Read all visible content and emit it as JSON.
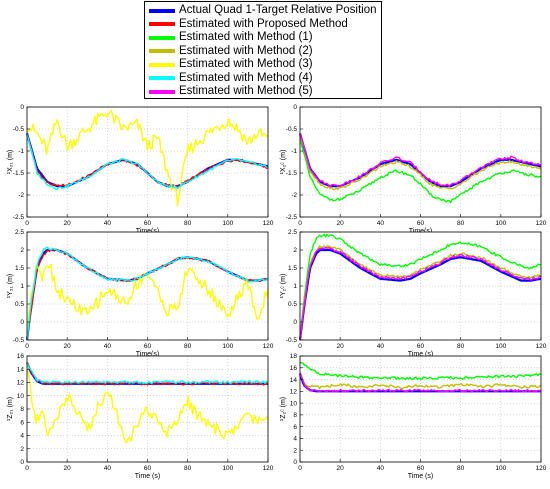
{
  "legend": [
    {
      "label": "Actual Quad 1-Target Relative Position",
      "color": "#0000ff"
    },
    {
      "label": "Estimated with Proposed Method",
      "color": "#ff0000"
    },
    {
      "label": "Estimated with Method (1)",
      "color": "#00ff00"
    },
    {
      "label": "Estimated with Method (2)",
      "color": "#bfbf00"
    },
    {
      "label": "Estimated with Method (3)",
      "color": "#ffff00"
    },
    {
      "label": "Estimated with Method (4)",
      "color": "#00ffff"
    },
    {
      "label": "Estimated with Method (5)",
      "color": "#ff00ff"
    }
  ],
  "chart_data": [
    {
      "type": "line",
      "panel": "top-left",
      "ylabel": "¹X₂₁ (m)",
      "xlabel": "Time(s)",
      "xlim": [
        0,
        120
      ],
      "ylim": [
        -2.5,
        0
      ],
      "xticks": [
        0,
        20,
        40,
        60,
        80,
        100,
        120
      ],
      "yticks": [
        -2.5,
        -2,
        -1.5,
        -1,
        -0.5,
        0
      ],
      "grid": true,
      "x": [
        0,
        5,
        10,
        15,
        20,
        30,
        40,
        48,
        55,
        60,
        65,
        70,
        75,
        80,
        90,
        100,
        105,
        110,
        115,
        120
      ],
      "series": [
        {
          "name": "Actual Quad 1-Target Relative Position",
          "color": "#0000ff",
          "values": [
            -0.6,
            -1.4,
            -1.7,
            -1.8,
            -1.8,
            -1.6,
            -1.3,
            -1.2,
            -1.3,
            -1.5,
            -1.7,
            -1.8,
            -1.8,
            -1.7,
            -1.4,
            -1.2,
            -1.2,
            -1.25,
            -1.3,
            -1.35
          ]
        },
        {
          "name": "Estimated with Proposed Method",
          "color": "#ff0000",
          "values": [
            -0.6,
            -1.45,
            -1.72,
            -1.8,
            -1.78,
            -1.58,
            -1.3,
            -1.2,
            -1.32,
            -1.5,
            -1.7,
            -1.78,
            -1.8,
            -1.68,
            -1.42,
            -1.22,
            -1.2,
            -1.25,
            -1.3,
            -1.38
          ]
        },
        {
          "name": "Estimated with Method (3)",
          "color": "#ffff00",
          "values": [
            -0.4,
            -0.6,
            -1.0,
            -0.3,
            -0.9,
            -0.5,
            -0.1,
            -0.5,
            -0.4,
            -0.9,
            -0.7,
            -1.5,
            -2.1,
            -1.0,
            -0.6,
            -0.3,
            -0.5,
            -0.8,
            -0.6,
            -0.7
          ]
        },
        {
          "name": "Estimated with Method (4)",
          "color": "#00ffff",
          "values": [
            -0.6,
            -1.5,
            -1.75,
            -1.85,
            -1.8,
            -1.6,
            -1.3,
            -1.2,
            -1.3,
            -1.5,
            -1.7,
            -1.8,
            -1.82,
            -1.7,
            -1.45,
            -1.22,
            -1.2,
            -1.26,
            -1.3,
            -1.37
          ]
        }
      ]
    },
    {
      "type": "line",
      "panel": "top-right",
      "ylabel": "¹X₂ᶜ (m)",
      "xlabel": "Time(s)",
      "xlim": [
        0,
        120
      ],
      "ylim": [
        -2.5,
        0
      ],
      "xticks": [
        0,
        20,
        40,
        60,
        80,
        100,
        120
      ],
      "yticks": [
        -2.5,
        -2,
        -1.5,
        -1,
        -0.5,
        0
      ],
      "grid": true,
      "x": [
        0,
        5,
        10,
        15,
        20,
        30,
        40,
        48,
        55,
        60,
        65,
        70,
        75,
        80,
        90,
        100,
        105,
        110,
        115,
        120
      ],
      "series": [
        {
          "name": "Actual Quad 1-Target Relative Position",
          "color": "#0000ff",
          "values": [
            -0.6,
            -1.4,
            -1.7,
            -1.8,
            -1.8,
            -1.6,
            -1.3,
            -1.2,
            -1.3,
            -1.5,
            -1.7,
            -1.8,
            -1.8,
            -1.7,
            -1.4,
            -1.2,
            -1.2,
            -1.25,
            -1.3,
            -1.35
          ]
        },
        {
          "name": "Estimated with Method (1)",
          "color": "#00ff00",
          "values": [
            -0.7,
            -1.6,
            -2.0,
            -2.1,
            -2.1,
            -1.9,
            -1.6,
            -1.45,
            -1.55,
            -1.75,
            -2.0,
            -2.1,
            -2.15,
            -2.0,
            -1.7,
            -1.5,
            -1.45,
            -1.5,
            -1.55,
            -1.6
          ]
        },
        {
          "name": "Estimated with Method (2)",
          "color": "#bfbf00",
          "values": [
            -0.6,
            -1.45,
            -1.75,
            -1.85,
            -1.85,
            -1.65,
            -1.35,
            -1.25,
            -1.35,
            -1.55,
            -1.75,
            -1.85,
            -1.85,
            -1.75,
            -1.45,
            -1.25,
            -1.25,
            -1.3,
            -1.35,
            -1.4
          ]
        },
        {
          "name": "Estimated with Method (5)",
          "color": "#ff00ff",
          "values": [
            -0.6,
            -1.4,
            -1.68,
            -1.78,
            -1.78,
            -1.58,
            -1.28,
            -1.15,
            -1.27,
            -1.47,
            -1.67,
            -1.77,
            -1.78,
            -1.68,
            -1.38,
            -1.17,
            -1.15,
            -1.22,
            -1.28,
            -1.33
          ]
        }
      ]
    },
    {
      "type": "line",
      "panel": "middle-left",
      "ylabel": "¹Y₂₁ (m)",
      "xlabel": "Time(s)",
      "xlim": [
        0,
        120
      ],
      "ylim": [
        -0.5,
        2.5
      ],
      "xticks": [
        0,
        20,
        40,
        60,
        80,
        100,
        120
      ],
      "yticks": [
        -0.5,
        0,
        0.5,
        1,
        1.5,
        2,
        2.5
      ],
      "grid": true,
      "x": [
        0,
        2,
        5,
        8,
        10,
        15,
        20,
        30,
        40,
        50,
        55,
        60,
        70,
        75,
        80,
        90,
        100,
        110,
        115,
        120
      ],
      "series": [
        {
          "name": "Actual Quad 1-Target Relative Position",
          "color": "#0000ff",
          "values": [
            -0.5,
            0.4,
            1.5,
            1.9,
            2.0,
            2.0,
            1.9,
            1.5,
            1.2,
            1.15,
            1.2,
            1.35,
            1.6,
            1.75,
            1.8,
            1.7,
            1.4,
            1.15,
            1.15,
            1.2
          ]
        },
        {
          "name": "Estimated with Proposed Method",
          "color": "#ff0000",
          "values": [
            -0.5,
            0.3,
            1.45,
            1.85,
            1.98,
            2.0,
            1.88,
            1.5,
            1.2,
            1.15,
            1.2,
            1.35,
            1.6,
            1.75,
            1.8,
            1.7,
            1.4,
            1.15,
            1.15,
            1.2
          ]
        },
        {
          "name": "Estimated with Method (3)",
          "color": "#ffff00",
          "values": [
            -0.5,
            0.8,
            1.7,
            1.2,
            1.8,
            0.9,
            0.6,
            0.2,
            0.9,
            0.5,
            1.1,
            1.4,
            0.3,
            0.4,
            1.5,
            0.9,
            0.2,
            1.1,
            0.0,
            1.0
          ]
        },
        {
          "name": "Estimated with Method (4)",
          "color": "#00ffff",
          "values": [
            -0.5,
            0.5,
            1.6,
            2.0,
            2.05,
            2.0,
            1.9,
            1.5,
            1.2,
            1.15,
            1.2,
            1.35,
            1.6,
            1.75,
            1.8,
            1.7,
            1.4,
            1.15,
            1.15,
            1.2
          ]
        }
      ]
    },
    {
      "type": "line",
      "panel": "middle-right",
      "ylabel": "¹Y₂ᶜ (m)",
      "xlabel": "Time (s)",
      "xlim": [
        0,
        120
      ],
      "ylim": [
        -0.5,
        2.5
      ],
      "xticks": [
        0,
        20,
        40,
        60,
        80,
        100,
        120
      ],
      "yticks": [
        -0.5,
        0,
        0.5,
        1,
        1.5,
        2,
        2.5
      ],
      "grid": true,
      "x": [
        0,
        2,
        5,
        8,
        10,
        15,
        20,
        30,
        40,
        50,
        55,
        60,
        70,
        75,
        80,
        90,
        100,
        110,
        115,
        120
      ],
      "series": [
        {
          "name": "Actual Quad 1-Target Relative Position",
          "color": "#0000ff",
          "values": [
            -0.5,
            0.4,
            1.5,
            1.9,
            2.0,
            2.0,
            1.9,
            1.5,
            1.2,
            1.15,
            1.2,
            1.35,
            1.6,
            1.75,
            1.8,
            1.7,
            1.4,
            1.15,
            1.15,
            1.2
          ]
        },
        {
          "name": "Estimated with Method (1)",
          "color": "#00ff00",
          "values": [
            -0.5,
            0.6,
            1.9,
            2.3,
            2.4,
            2.4,
            2.3,
            1.9,
            1.6,
            1.55,
            1.6,
            1.75,
            2.0,
            2.15,
            2.2,
            2.1,
            1.8,
            1.55,
            1.5,
            1.6
          ]
        },
        {
          "name": "Estimated with Method (2)",
          "color": "#bfbf00",
          "values": [
            -0.5,
            0.5,
            1.6,
            2.0,
            2.1,
            2.1,
            2.0,
            1.6,
            1.3,
            1.25,
            1.3,
            1.45,
            1.7,
            1.85,
            1.9,
            1.8,
            1.5,
            1.25,
            1.25,
            1.3
          ]
        },
        {
          "name": "Estimated with Method (5)",
          "color": "#ff00ff",
          "values": [
            -0.5,
            0.45,
            1.55,
            1.95,
            2.05,
            2.05,
            1.95,
            1.55,
            1.25,
            1.2,
            1.25,
            1.4,
            1.65,
            1.8,
            1.85,
            1.75,
            1.45,
            1.2,
            1.2,
            1.25
          ]
        }
      ]
    },
    {
      "type": "line",
      "panel": "bottom-left",
      "ylabel": "¹Z₂₁ (m)",
      "xlabel": "Time (s)",
      "xlim": [
        0,
        120
      ],
      "ylim": [
        0,
        16
      ],
      "xticks": [
        0,
        20,
        40,
        60,
        80,
        100,
        120
      ],
      "yticks": [
        0,
        2,
        4,
        6,
        8,
        10,
        12,
        14,
        16
      ],
      "grid": true,
      "x": [
        0,
        2,
        5,
        8,
        10,
        20,
        30,
        40,
        50,
        60,
        70,
        80,
        90,
        100,
        110,
        120
      ],
      "series": [
        {
          "name": "Actual Quad 1-Target Relative Position",
          "color": "#0000ff",
          "values": [
            15.0,
            13.5,
            12.2,
            11.8,
            11.8,
            11.8,
            11.8,
            11.8,
            11.8,
            11.8,
            11.8,
            11.8,
            11.8,
            11.8,
            11.8,
            11.8
          ]
        },
        {
          "name": "Estimated with Proposed Method",
          "color": "#ff0000",
          "values": [
            15.2,
            13.6,
            12.3,
            11.9,
            11.9,
            11.8,
            11.9,
            11.8,
            11.9,
            11.8,
            11.9,
            11.8,
            11.9,
            11.8,
            11.9,
            11.8
          ]
        },
        {
          "name": "Estimated with Method (3)",
          "color": "#ffff00",
          "values": [
            15.0,
            10.0,
            6.0,
            7.5,
            4.0,
            10.0,
            5.0,
            11.0,
            3.0,
            8.0,
            4.5,
            9.0,
            5.5,
            4.0,
            7.0,
            6.0
          ]
        },
        {
          "name": "Estimated with Method (4)",
          "color": "#00ffff",
          "values": [
            15.0,
            13.8,
            12.4,
            12.0,
            12.0,
            12.0,
            12.1,
            12.0,
            12.1,
            12.0,
            12.1,
            12.0,
            12.1,
            12.0,
            12.1,
            12.0
          ]
        }
      ]
    },
    {
      "type": "line",
      "panel": "bottom-right",
      "ylabel": "¹Z₂ᶜ (m)",
      "xlabel": "Time (s)",
      "xlim": [
        0,
        120
      ],
      "ylim": [
        0,
        18
      ],
      "xticks": [
        0,
        20,
        40,
        60,
        80,
        100,
        120
      ],
      "yticks": [
        0,
        2,
        4,
        6,
        8,
        10,
        12,
        14,
        16,
        18
      ],
      "grid": true,
      "x": [
        0,
        2,
        5,
        8,
        10,
        20,
        30,
        40,
        50,
        60,
        70,
        80,
        90,
        100,
        110,
        120
      ],
      "series": [
        {
          "name": "Actual Quad 1-Target Relative Position",
          "color": "#0000ff",
          "values": [
            15.0,
            13.0,
            12.2,
            12.0,
            12.0,
            12.0,
            12.0,
            12.0,
            12.0,
            12.0,
            12.0,
            12.0,
            12.0,
            12.0,
            12.0,
            12.0
          ]
        },
        {
          "name": "Estimated with Method (1)",
          "color": "#00ff00",
          "values": [
            17.0,
            16.5,
            15.8,
            15.3,
            15.0,
            14.6,
            14.4,
            14.3,
            14.2,
            14.2,
            14.3,
            14.3,
            14.4,
            14.5,
            14.6,
            14.8
          ]
        },
        {
          "name": "Estimated with Method (2)",
          "color": "#bfbf00",
          "values": [
            15.0,
            13.5,
            12.8,
            13.0,
            12.6,
            13.2,
            12.7,
            13.1,
            12.6,
            13.0,
            12.7,
            13.2,
            12.8,
            13.1,
            12.7,
            12.9
          ]
        },
        {
          "name": "Estimated with Method (5)",
          "color": "#ff00ff",
          "values": [
            15.0,
            13.2,
            12.3,
            12.1,
            12.1,
            12.1,
            12.1,
            12.1,
            12.1,
            12.1,
            12.1,
            12.1,
            12.1,
            12.1,
            12.1,
            12.1
          ]
        }
      ]
    }
  ]
}
